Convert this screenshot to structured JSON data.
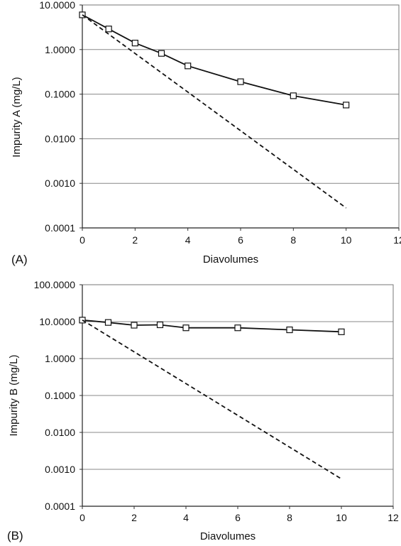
{
  "chart_data": [
    {
      "type": "line",
      "panel_label": "(A)",
      "xlabel": "Diavolumes",
      "ylabel": "Impurity A (mg/L)",
      "yscale": "log",
      "xlim": [
        0,
        12
      ],
      "ylim": [
        0.0001,
        10
      ],
      "x_ticks": [
        "0",
        "2",
        "4",
        "6",
        "8",
        "10",
        "12"
      ],
      "y_ticks": [
        "0.0001",
        "0.0010",
        "0.0100",
        "0.1000",
        "1.0000",
        "10.0000"
      ],
      "grid": "horizontal",
      "series": [
        {
          "style": "solid-with-square-markers",
          "x": [
            0,
            1,
            2,
            3,
            4,
            6,
            8,
            10
          ],
          "y": [
            6.0,
            2.9,
            1.4,
            0.82,
            0.43,
            0.19,
            0.092,
            0.057
          ]
        },
        {
          "style": "dashed",
          "x": [
            0,
            10
          ],
          "y": [
            6.0,
            0.00028
          ]
        }
      ]
    },
    {
      "type": "line",
      "panel_label": "(B)",
      "xlabel": "Diavolumes",
      "ylabel": "Impurity B (mg/L)",
      "yscale": "log",
      "xlim": [
        0,
        12
      ],
      "ylim": [
        0.0001,
        100
      ],
      "x_ticks": [
        "0",
        "2",
        "4",
        "6",
        "8",
        "10",
        "12"
      ],
      "y_ticks": [
        "0.0001",
        "0.0010",
        "0.0100",
        "0.1000",
        "1.0000",
        "10.0000",
        "100.0000"
      ],
      "grid": "horizontal",
      "series": [
        {
          "style": "solid-with-square-markers",
          "x": [
            0,
            1,
            2,
            3,
            4,
            6,
            8,
            10
          ],
          "y": [
            11.0,
            9.5,
            8.0,
            8.2,
            6.8,
            6.8,
            6.0,
            5.3
          ]
        },
        {
          "style": "dashed",
          "x": [
            0,
            10
          ],
          "y": [
            11.0,
            0.00055
          ]
        }
      ]
    }
  ]
}
